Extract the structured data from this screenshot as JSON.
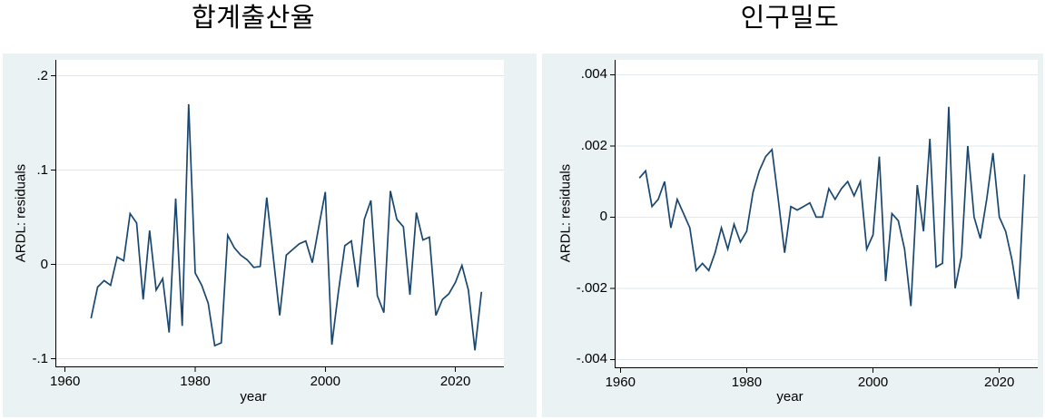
{
  "colors": {
    "graph_bg": "#eaf2f3",
    "plot_bg": "#ffffff",
    "gridline": "#dfeaee",
    "axis": "#000000",
    "line": "#1a476f",
    "text": "#000000"
  },
  "chart_data": [
    {
      "type": "line",
      "title": "합계출산율",
      "xlabel": "year",
      "ylabel": "ARDL: residuals",
      "x_ticks": [
        1960,
        1980,
        2000,
        2020
      ],
      "y_ticks": {
        "labels": [
          ".2",
          ".1",
          "0",
          "-.1"
        ],
        "values": [
          0.2,
          0.1,
          0,
          -0.1
        ]
      },
      "xlim": [
        1958.65,
        2027.45
      ],
      "ylim": [
        -0.108,
        0.217
      ],
      "grid": "horizontal",
      "legend": "none",
      "series": [
        {
          "name": "ARDL: residuals",
          "x": [
            1964,
            1965,
            1966,
            1967,
            1968,
            1969,
            1970,
            1971,
            1972,
            1973,
            1974,
            1975,
            1976,
            1977,
            1978,
            1979,
            1980,
            1981,
            1982,
            1983,
            1984,
            1985,
            1986,
            1987,
            1988,
            1989,
            1990,
            1991,
            1992,
            1993,
            1994,
            1995,
            1996,
            1997,
            1998,
            1999,
            2000,
            2001,
            2002,
            2003,
            2004,
            2005,
            2006,
            2007,
            2008,
            2009,
            2010,
            2011,
            2012,
            2013,
            2014,
            2015,
            2016,
            2017,
            2018,
            2019,
            2020,
            2021,
            2022,
            2023,
            2024
          ],
          "y": [
            -0.057,
            -0.024,
            -0.017,
            -0.022,
            0.008,
            0.004,
            0.054,
            0.044,
            -0.037,
            0.036,
            -0.027,
            -0.015,
            -0.072,
            0.07,
            -0.065,
            0.17,
            -0.009,
            -0.022,
            -0.041,
            -0.086,
            -0.083,
            0.031,
            0.018,
            0.01,
            0.005,
            -0.003,
            -0.002,
            0.071,
            0.008,
            -0.054,
            0.01,
            0.016,
            0.022,
            0.025,
            0.002,
            0.04,
            0.077,
            -0.085,
            -0.03,
            0.02,
            0.025,
            -0.024,
            0.048,
            0.068,
            -0.033,
            -0.051,
            0.078,
            0.048,
            0.04,
            -0.032,
            0.055,
            0.026,
            0.029,
            -0.054,
            -0.037,
            -0.031,
            -0.019,
            -0.001,
            -0.027,
            -0.091,
            -0.029
          ]
        }
      ]
    },
    {
      "type": "line",
      "title": "인구밀도",
      "xlabel": "year",
      "ylabel": "ARDL: residuals",
      "x_ticks": [
        1960,
        1980,
        2000,
        2020
      ],
      "y_ticks": {
        "labels": [
          ".004",
          ".002",
          "0",
          "-.002",
          "-.004"
        ],
        "values": [
          0.004,
          0.002,
          0,
          -0.002,
          -0.004
        ]
      },
      "xlim": [
        1959.24,
        2026.08
      ],
      "ylim": [
        -0.00422,
        0.00442
      ],
      "grid": "horizontal",
      "legend": "none",
      "series": [
        {
          "name": "ARDL: residuals",
          "x": [
            1963,
            1964,
            1965,
            1966,
            1967,
            1968,
            1969,
            1970,
            1971,
            1972,
            1973,
            1974,
            1975,
            1976,
            1977,
            1978,
            1979,
            1980,
            1981,
            1982,
            1983,
            1984,
            1985,
            1986,
            1987,
            1988,
            1989,
            1990,
            1991,
            1992,
            1993,
            1994,
            1995,
            1996,
            1997,
            1998,
            1999,
            2000,
            2001,
            2002,
            2003,
            2004,
            2005,
            2006,
            2007,
            2008,
            2009,
            2010,
            2011,
            2012,
            2013,
            2014,
            2015,
            2016,
            2017,
            2018,
            2019,
            2020,
            2021,
            2022,
            2023,
            2024
          ],
          "y": [
            0.0011,
            0.0013,
            0.0003,
            0.0005,
            0.001,
            -0.0003,
            0.0005,
            0.0001,
            -0.0003,
            -0.0015,
            -0.0013,
            -0.0015,
            -0.001,
            -0.0003,
            -0.0009,
            -0.0002,
            -0.0007,
            -0.0004,
            0.0007,
            0.0013,
            0.0017,
            0.0019,
            0.0005,
            -0.001,
            0.0003,
            0.0002,
            0.0003,
            0.0004,
            0.0,
            0.0,
            0.0008,
            0.0005,
            0.0008,
            0.001,
            0.0006,
            0.001,
            -0.0009,
            -0.0005,
            0.0017,
            -0.0018,
            0.0001,
            -0.0001,
            -0.0009,
            -0.0025,
            0.0009,
            -0.0004,
            0.0022,
            -0.0014,
            -0.0013,
            0.0031,
            -0.002,
            -0.0011,
            0.002,
            0.0,
            -0.0006,
            0.0005,
            0.0018,
            0.0,
            -0.0004,
            -0.0012,
            -0.0023,
            0.0012
          ]
        }
      ]
    }
  ]
}
